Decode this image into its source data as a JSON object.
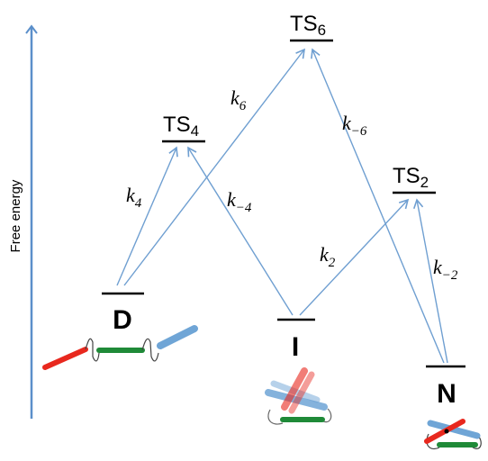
{
  "axis_label": "Free energy",
  "states": {
    "TS6": {
      "base": "TS",
      "sub": "6"
    },
    "TS4": {
      "base": "TS",
      "sub": "4"
    },
    "TS2": {
      "base": "TS",
      "sub": "2"
    },
    "D": "D",
    "I": "I",
    "N": "N"
  },
  "rates": {
    "k6": {
      "base": "k",
      "sub": "6"
    },
    "km6": {
      "base": "k",
      "sub": "−6"
    },
    "k4": {
      "base": "k",
      "sub": "4"
    },
    "km4": {
      "base": "k",
      "sub": "−4"
    },
    "k2": {
      "base": "k",
      "sub": "2"
    },
    "km2": {
      "base": "k",
      "sub": "−2"
    }
  },
  "colors": {
    "arrow": "#6f9fd1",
    "axis": "#5b8fca",
    "level": "#000000",
    "red_segment": "#e8281e",
    "green_segment": "#1f8a38",
    "blue_segment": "#6fa5d6"
  },
  "icons": {
    "D": "extended-chain-icon",
    "I": "partially-folded-chain-icon",
    "N": "folded-chain-icon"
  }
}
